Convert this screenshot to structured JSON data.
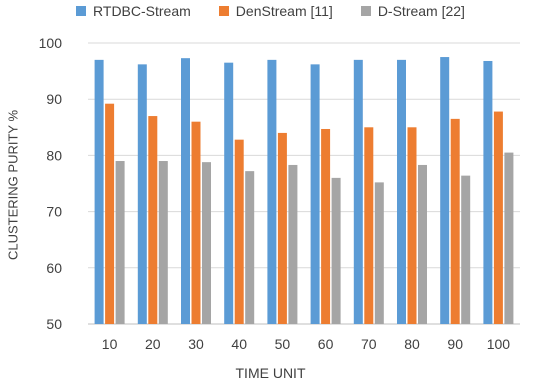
{
  "chart_data": {
    "type": "bar",
    "categories": [
      "10",
      "20",
      "30",
      "40",
      "50",
      "60",
      "70",
      "80",
      "90",
      "100"
    ],
    "series": [
      {
        "name": "RTDBC-Stream",
        "color": "#5b9bd5",
        "values": [
          97.0,
          96.2,
          97.3,
          96.5,
          97.0,
          96.2,
          97.0,
          97.0,
          97.5,
          96.8
        ]
      },
      {
        "name": "DenStream [11]",
        "color": "#ed7d31",
        "values": [
          89.2,
          87.0,
          86.0,
          82.8,
          84.0,
          84.7,
          85.0,
          85.0,
          86.5,
          87.8
        ]
      },
      {
        "name": "D-Stream [22]",
        "color": "#a5a5a5",
        "values": [
          79.0,
          79.0,
          78.8,
          77.2,
          78.3,
          76.0,
          75.2,
          78.3,
          76.4,
          80.5
        ]
      }
    ],
    "xlabel": "TIME UNIT",
    "ylabel": "CLUSTERING PURITY %",
    "ylim": [
      50,
      100
    ],
    "yticks": [
      50,
      60,
      70,
      80,
      90,
      100
    ],
    "grid": true,
    "legend_position": "top"
  }
}
